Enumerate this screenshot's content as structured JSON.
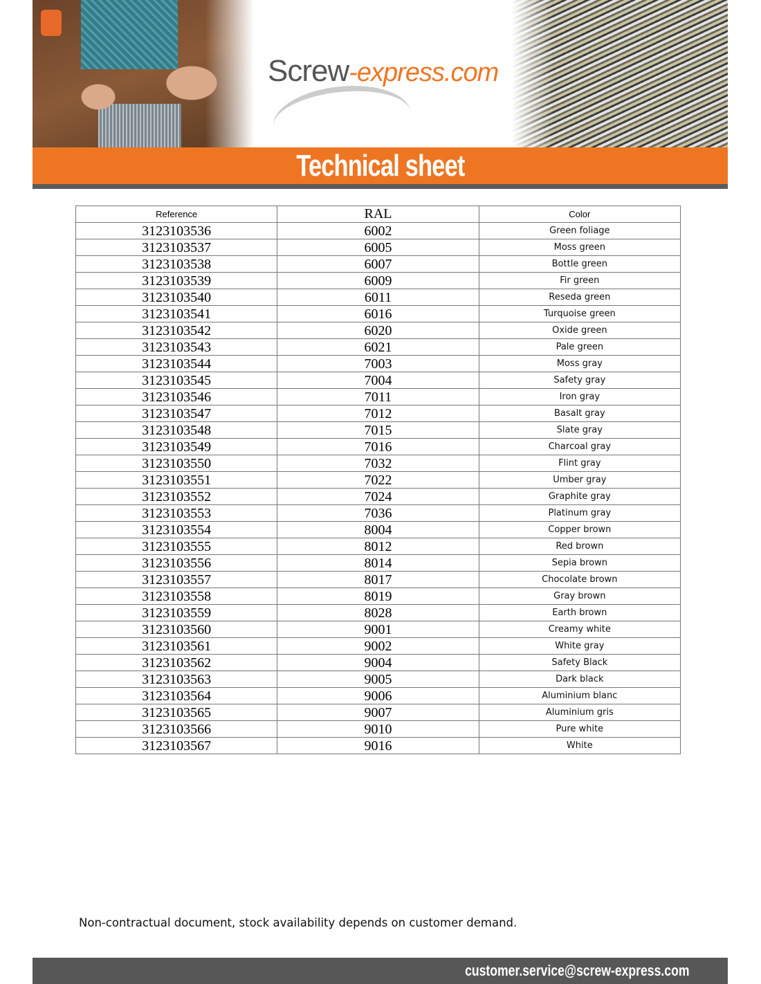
{
  "header": {
    "logo_text": "Screw-express.com",
    "logo_part1": "Screw",
    "logo_part2": "-express.com",
    "title": "Technical sheet"
  },
  "colors": {
    "accent": "#ee7623",
    "dark_gray": "#575757"
  },
  "table": {
    "columns": [
      "Reference",
      "RAL",
      "Color"
    ],
    "rows": [
      [
        "3123103536",
        "6002",
        "Green foliage"
      ],
      [
        "3123103537",
        "6005",
        "Moss green"
      ],
      [
        "3123103538",
        "6007",
        "Bottle green"
      ],
      [
        "3123103539",
        "6009",
        "Fir green"
      ],
      [
        "3123103540",
        "6011",
        "Reseda green"
      ],
      [
        "3123103541",
        "6016",
        "Turquoise green"
      ],
      [
        "3123103542",
        "6020",
        "Oxide green"
      ],
      [
        "3123103543",
        "6021",
        "Pale green"
      ],
      [
        "3123103544",
        "7003",
        "Moss gray"
      ],
      [
        "3123103545",
        "7004",
        "Safety gray"
      ],
      [
        "3123103546",
        "7011",
        "Iron gray"
      ],
      [
        "3123103547",
        "7012",
        "Basalt gray"
      ],
      [
        "3123103548",
        "7015",
        "Slate gray"
      ],
      [
        "3123103549",
        "7016",
        "Charcoal gray"
      ],
      [
        "3123103550",
        "7032",
        "Flint gray"
      ],
      [
        "3123103551",
        "7022",
        "Umber gray"
      ],
      [
        "3123103552",
        "7024",
        "Graphite gray"
      ],
      [
        "3123103553",
        "7036",
        "Platinum gray"
      ],
      [
        "3123103554",
        "8004",
        "Copper brown"
      ],
      [
        "3123103555",
        "8012",
        "Red brown"
      ],
      [
        "3123103556",
        "8014",
        "Sepia brown"
      ],
      [
        "3123103557",
        "8017",
        "Chocolate brown"
      ],
      [
        "3123103558",
        "8019",
        "Gray brown"
      ],
      [
        "3123103559",
        "8028",
        "Earth brown"
      ],
      [
        "3123103560",
        "9001",
        "Creamy white"
      ],
      [
        "3123103561",
        "9002",
        "White gray"
      ],
      [
        "3123103562",
        "9004",
        "Safety Black"
      ],
      [
        "3123103563",
        "9005",
        "Dark black"
      ],
      [
        "3123103564",
        "9006",
        "Aluminium blanc"
      ],
      [
        "3123103565",
        "9007",
        "Aluminium gris"
      ],
      [
        "3123103566",
        "9010",
        "Pure white"
      ],
      [
        "3123103567",
        "9016",
        "White"
      ]
    ]
  },
  "note": "Non-contractual document, stock availability depends on customer demand.",
  "footer": {
    "email": "customer.service@screw-express.com"
  }
}
